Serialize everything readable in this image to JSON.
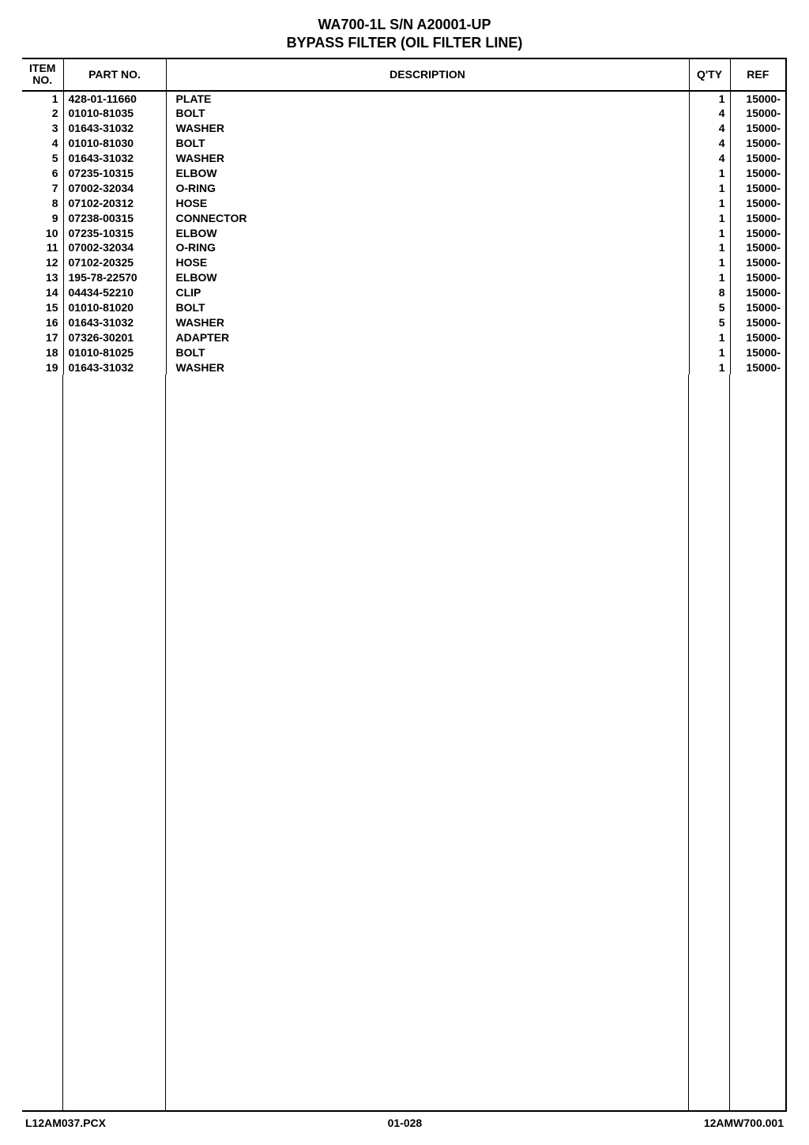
{
  "header": {
    "line1": "WA700-1L S/N A20001-UP",
    "line2": "BYPASS FILTER (OIL FILTER LINE)"
  },
  "table": {
    "columns": {
      "item": "ITEM\nNO.",
      "part": "PART NO.",
      "description": "DESCRIPTION",
      "qty": "Q'TY",
      "ref": "REF"
    },
    "rows": [
      {
        "item": "1",
        "part": "428-01-11660",
        "desc": "PLATE",
        "qty": "1",
        "ref": "15000-"
      },
      {
        "item": "2",
        "part": "01010-81035",
        "desc": "BOLT",
        "qty": "4",
        "ref": "15000-"
      },
      {
        "item": "3",
        "part": "01643-31032",
        "desc": "WASHER",
        "qty": "4",
        "ref": "15000-"
      },
      {
        "item": "4",
        "part": "01010-81030",
        "desc": "BOLT",
        "qty": "4",
        "ref": "15000-"
      },
      {
        "item": "5",
        "part": "01643-31032",
        "desc": "WASHER",
        "qty": "4",
        "ref": "15000-"
      },
      {
        "item": "6",
        "part": "07235-10315",
        "desc": "ELBOW",
        "qty": "1",
        "ref": "15000-"
      },
      {
        "item": "7",
        "part": "07002-32034",
        "desc": "O-RING",
        "qty": "1",
        "ref": "15000-"
      },
      {
        "item": "8",
        "part": "07102-20312",
        "desc": "HOSE",
        "qty": "1",
        "ref": "15000-"
      },
      {
        "item": "9",
        "part": "07238-00315",
        "desc": "CONNECTOR",
        "qty": "1",
        "ref": "15000-"
      },
      {
        "item": "10",
        "part": "07235-10315",
        "desc": "ELBOW",
        "qty": "1",
        "ref": "15000-"
      },
      {
        "item": "11",
        "part": "07002-32034",
        "desc": "O-RING",
        "qty": "1",
        "ref": "15000-"
      },
      {
        "item": "12",
        "part": "07102-20325",
        "desc": "HOSE",
        "qty": "1",
        "ref": "15000-"
      },
      {
        "item": "13",
        "part": "195-78-22570",
        "desc": "ELBOW",
        "qty": "1",
        "ref": "15000-"
      },
      {
        "item": "14",
        "part": "04434-52210",
        "desc": "CLIP",
        "qty": "8",
        "ref": "15000-"
      },
      {
        "item": "15",
        "part": "01010-81020",
        "desc": "BOLT",
        "qty": "5",
        "ref": "15000-"
      },
      {
        "item": "16",
        "part": "01643-31032",
        "desc": "WASHER",
        "qty": "5",
        "ref": "15000-"
      },
      {
        "item": "17",
        "part": "07326-30201",
        "desc": "ADAPTER",
        "qty": "1",
        "ref": "15000-"
      },
      {
        "item": "18",
        "part": "01010-81025",
        "desc": "BOLT",
        "qty": "1",
        "ref": "15000-"
      },
      {
        "item": "19",
        "part": "01643-31032",
        "desc": "WASHER",
        "qty": "1",
        "ref": "15000-"
      }
    ]
  },
  "footer": {
    "left": "L12AM037.PCX",
    "center": "01-028",
    "right": "12AMW700.001"
  }
}
